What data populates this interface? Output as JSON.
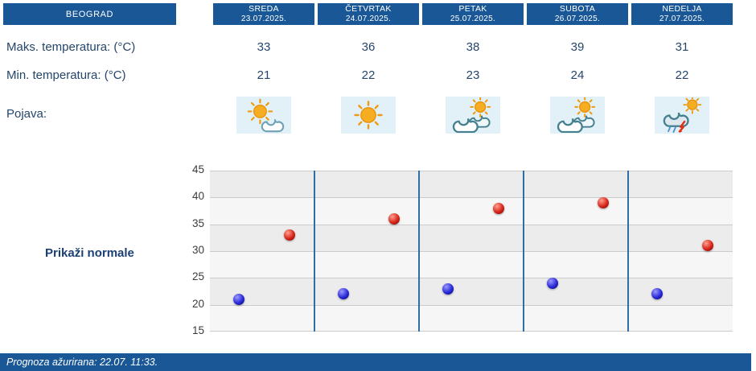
{
  "colors": {
    "header_bg": "#1a5796",
    "footer_bg": "#1a5796",
    "label_text": "#24466b",
    "link_text": "#1b3f77",
    "icon_bg": "#e2f1f7",
    "chart_separator": "#2e6da6",
    "min_dot": "#2020cc",
    "max_dot": "#cc1510"
  },
  "header": {
    "location": "BEOGRAD",
    "days": [
      {
        "name": "SREDA",
        "date": "23.07.2025."
      },
      {
        "name": "ČETVRTAK",
        "date": "24.07.2025."
      },
      {
        "name": "PETAK",
        "date": "25.07.2025."
      },
      {
        "name": "SUBOTA",
        "date": "26.07.2025."
      },
      {
        "name": "NEDELJA",
        "date": "27.07.2025."
      }
    ]
  },
  "table": {
    "max_row_label": "Maks. temperatura: (°C)",
    "min_row_label": "Min. temperatura: (°C)",
    "pojava_row_label": "Pojava:",
    "max_values": [
      33,
      36,
      38,
      39,
      31
    ],
    "min_values": [
      21,
      22,
      23,
      24,
      22
    ],
    "icons": [
      "sun-behind-cloud",
      "sun",
      "mostly-cloudy-sun",
      "mostly-cloudy-sun",
      "rain-thunder-cloud"
    ]
  },
  "controls": {
    "show_normals_label": "Prikaži normale"
  },
  "chart_data": {
    "type": "scatter",
    "categories": [
      "SREDA 23.07.2025.",
      "ČETVRTAK 24.07.2025.",
      "PETAK 25.07.2025.",
      "SUBOTA 26.07.2025.",
      "NEDELJA 27.07.2025."
    ],
    "series": [
      {
        "name": "Min. temperatura (°C)",
        "color": "#2020cc",
        "values": [
          21,
          22,
          23,
          24,
          22
        ]
      },
      {
        "name": "Maks. temperatura (°C)",
        "color": "#cc1510",
        "values": [
          33,
          36,
          38,
          39,
          31
        ]
      }
    ],
    "ylim": [
      15,
      45
    ],
    "yticks": [
      15,
      20,
      25,
      30,
      35,
      40,
      45
    ],
    "grid": true,
    "legend": false
  },
  "footer": {
    "updated_text": "Prognoza ažurirana:  22.07. 11:33."
  }
}
